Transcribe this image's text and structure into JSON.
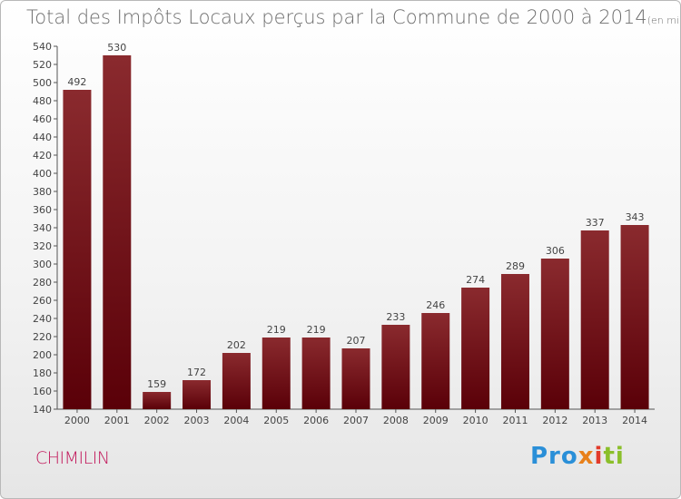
{
  "title": "Total des Impôts Locaux perçus par la Commune de 2000 à 2014",
  "subtitle": "(en milliers d'€)",
  "commune": "CHIMILIN",
  "logo": {
    "text": "Proxiti",
    "parts": [
      "Pro",
      "x",
      "i",
      "ti"
    ],
    "colors": [
      "#2a8fd8",
      "#e8801a",
      "#e23a2a",
      "#8bbf2a"
    ]
  },
  "colors": {
    "bar_top": "#8a2a2e",
    "bar_bottom": "#5a0008"
  },
  "chart_data": {
    "type": "bar",
    "title": "Total des Impôts Locaux perçus par la Commune de 2000 à 2014",
    "subtitle": "(en milliers d'€)",
    "xlabel": "",
    "ylabel": "",
    "categories": [
      "2000",
      "2001",
      "2002",
      "2003",
      "2004",
      "2005",
      "2006",
      "2007",
      "2008",
      "2009",
      "2010",
      "2011",
      "2012",
      "2013",
      "2014"
    ],
    "values": [
      492,
      530,
      159,
      172,
      202,
      219,
      219,
      207,
      233,
      246,
      274,
      289,
      306,
      337,
      343
    ],
    "ylim": [
      140,
      540
    ],
    "ytick_step": 20,
    "grid": false,
    "data_labels": true
  }
}
